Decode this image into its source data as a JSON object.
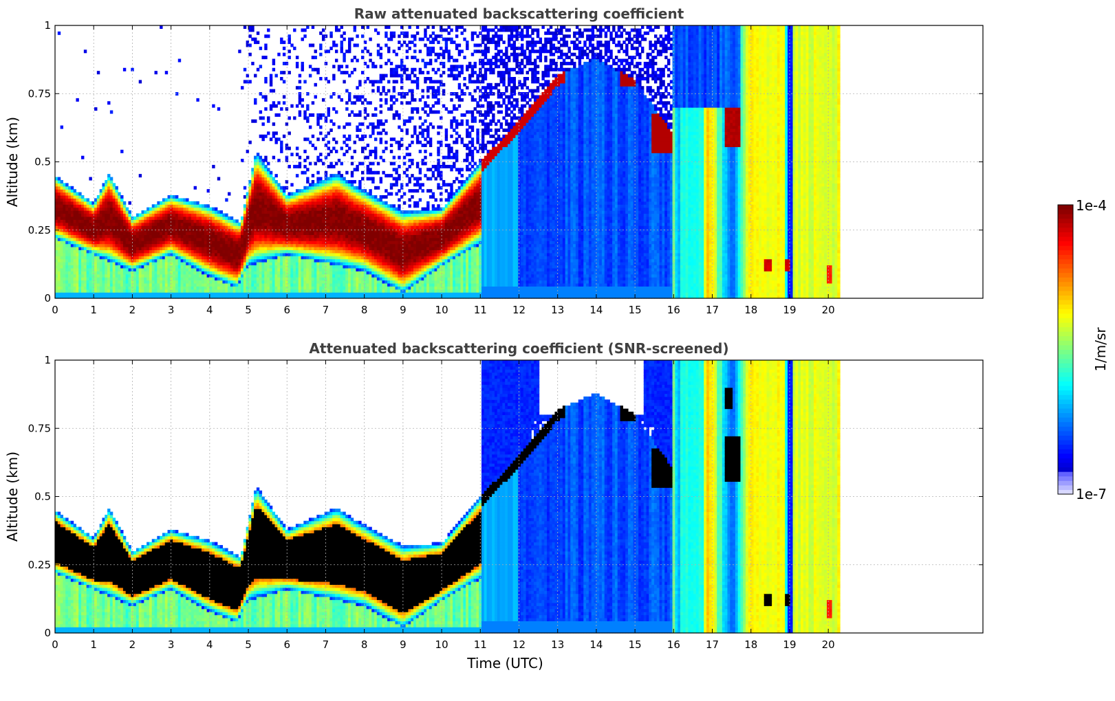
{
  "chart_data": [
    {
      "type": "heatmap",
      "title": "Raw attenuated backscattering coefficient",
      "xlabel": "",
      "ylabel": "Altitude (km)",
      "xlim": [
        0,
        24
      ],
      "ylim": [
        0,
        1
      ],
      "x_ticks": [
        "0",
        "1",
        "2",
        "3",
        "4",
        "5",
        "6",
        "7",
        "8",
        "9",
        "10",
        "11",
        "12",
        "13",
        "14",
        "15",
        "16",
        "17",
        "18",
        "19",
        "20"
      ],
      "y_ticks": [
        "0",
        "0.25",
        "0.5",
        "0.75",
        "1"
      ],
      "data_extent_hours": 20.3,
      "grid": true,
      "masked": false,
      "layer_top_km": [
        {
          "t": 0.0,
          "top": 0.45
        },
        {
          "t": 1.0,
          "top": 0.35
        },
        {
          "t": 1.4,
          "top": 0.46
        },
        {
          "t": 2.0,
          "top": 0.3
        },
        {
          "t": 3.0,
          "top": 0.38
        },
        {
          "t": 4.0,
          "top": 0.34
        },
        {
          "t": 4.8,
          "top": 0.28
        },
        {
          "t": 5.2,
          "top": 0.54
        },
        {
          "t": 6.0,
          "top": 0.38
        },
        {
          "t": 7.3,
          "top": 0.46
        },
        {
          "t": 7.7,
          "top": 0.42
        },
        {
          "t": 9.0,
          "top": 0.32
        },
        {
          "t": 10.0,
          "top": 0.33
        },
        {
          "t": 11.0,
          "top": 0.5
        },
        {
          "t": 12.0,
          "top": 0.65
        },
        {
          "t": 13.0,
          "top": 0.82
        },
        {
          "t": 14.0,
          "top": 0.88
        },
        {
          "t": 15.0,
          "top": 0.8
        },
        {
          "t": 16.0,
          "top": 0.6
        }
      ],
      "layer_bottom_km": [
        {
          "t": 0.0,
          "bottom": 0.22
        },
        {
          "t": 1.0,
          "bottom": 0.16
        },
        {
          "t": 2.0,
          "bottom": 0.1
        },
        {
          "t": 3.0,
          "bottom": 0.16
        },
        {
          "t": 4.0,
          "bottom": 0.08
        },
        {
          "t": 4.7,
          "bottom": 0.04
        },
        {
          "t": 5.0,
          "bottom": 0.12
        },
        {
          "t": 6.0,
          "bottom": 0.16
        },
        {
          "t": 7.0,
          "bottom": 0.13
        },
        {
          "t": 8.0,
          "bottom": 0.1
        },
        {
          "t": 9.0,
          "bottom": 0.02
        },
        {
          "t": 10.0,
          "bottom": 0.12
        },
        {
          "t": 11.0,
          "bottom": 0.2
        }
      ]
    },
    {
      "type": "heatmap",
      "title": "Attenuated backscattering coefficient (SNR-screened)",
      "xlabel": "Time (UTC)",
      "ylabel": "Altitude (km)",
      "xlim": [
        0,
        24
      ],
      "ylim": [
        0,
        1
      ],
      "x_ticks": [
        "0",
        "1",
        "2",
        "3",
        "4",
        "5",
        "6",
        "7",
        "8",
        "9",
        "10",
        "11",
        "12",
        "13",
        "14",
        "15",
        "16",
        "17",
        "18",
        "19",
        "20"
      ],
      "y_ticks": [
        "0",
        "0.25",
        "0.5",
        "0.75",
        "1"
      ],
      "data_extent_hours": 20.3,
      "grid": true,
      "masked": true
    }
  ],
  "colorbar": {
    "label": "1/m/sr",
    "max_label": "1e-4",
    "min_label": "1e-7",
    "colormap": "jet",
    "scale": "log"
  },
  "colors": {
    "title_text": "#404040",
    "grid": "#b0b0b0",
    "background": "#ffffff"
  }
}
